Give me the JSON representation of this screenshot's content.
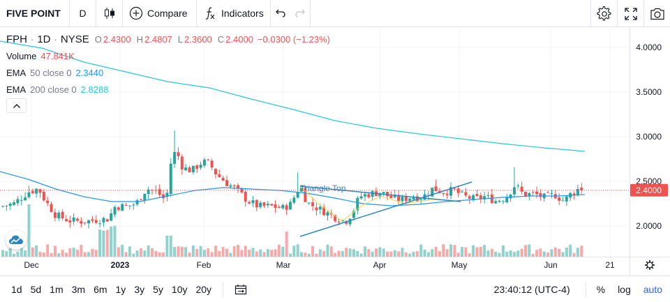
{
  "toolbar": {
    "symbol": "FIVE POINT",
    "interval": "D",
    "compare_label": "Compare",
    "indicators_label": "Indicators"
  },
  "legend": {
    "symbol": "FPH",
    "interval": "1D",
    "exchange": "NYSE",
    "open_label": "O",
    "open": "2.4300",
    "high_label": "H",
    "high": "2.4807",
    "low_label": "L",
    "low": "2.3600",
    "close_label": "C",
    "close": "2.4000",
    "change": "−0.0300 (−1.23%)",
    "volume_label": "Volume",
    "volume": "47.841K",
    "ema50_label": "EMA",
    "ema50_params": "50 close 0",
    "ema50_value": "2.3440",
    "ema200_label": "EMA",
    "ema200_params": "200 close 0",
    "ema200_value": "2.8288"
  },
  "price_scale": {
    "ticks": [
      "4.0000",
      "3.5000",
      "3.0000",
      "2.5000",
      "2.0000"
    ],
    "last_price": "2.4000"
  },
  "time_scale": {
    "ticks": [
      "Dec",
      "2023",
      "Feb",
      "Mar",
      "Apr",
      "May",
      "Jun",
      "21"
    ]
  },
  "annotation": {
    "pattern_label": "Triangle Top"
  },
  "bottombar": {
    "ranges": [
      "1d",
      "5d",
      "1m",
      "3m",
      "6m",
      "1y",
      "3y",
      "5y",
      "10y",
      "20y"
    ],
    "clock": "23:40:12 (UTC-4)",
    "percent_label": "%",
    "log_label": "log",
    "auto_label": "auto"
  },
  "colors": {
    "up": "#26a69a",
    "down": "#ef5350",
    "ema50": "#2196f3",
    "ema200": "#26c6da",
    "accent": "#2962ff",
    "pattern": "#2e86c1",
    "pattern_inner": "#f5d547"
  },
  "chart_data": {
    "type": "candlestick",
    "y_axis": {
      "min": 1.7,
      "max": 4.15,
      "ticks": [
        4.0,
        3.5,
        3.0,
        2.5,
        2.0
      ]
    },
    "x_axis_ticks": [
      "Dec",
      "2023",
      "Feb",
      "Mar",
      "Apr",
      "May",
      "Jun",
      "21"
    ],
    "series": [
      {
        "name": "EMA 50 close 0",
        "last": 2.344
      },
      {
        "name": "EMA 200 close 0",
        "last": 2.8288
      }
    ],
    "last": {
      "open": 2.43,
      "high": 2.4807,
      "low": 2.36,
      "close": 2.4,
      "volume": "47.841K"
    }
  }
}
